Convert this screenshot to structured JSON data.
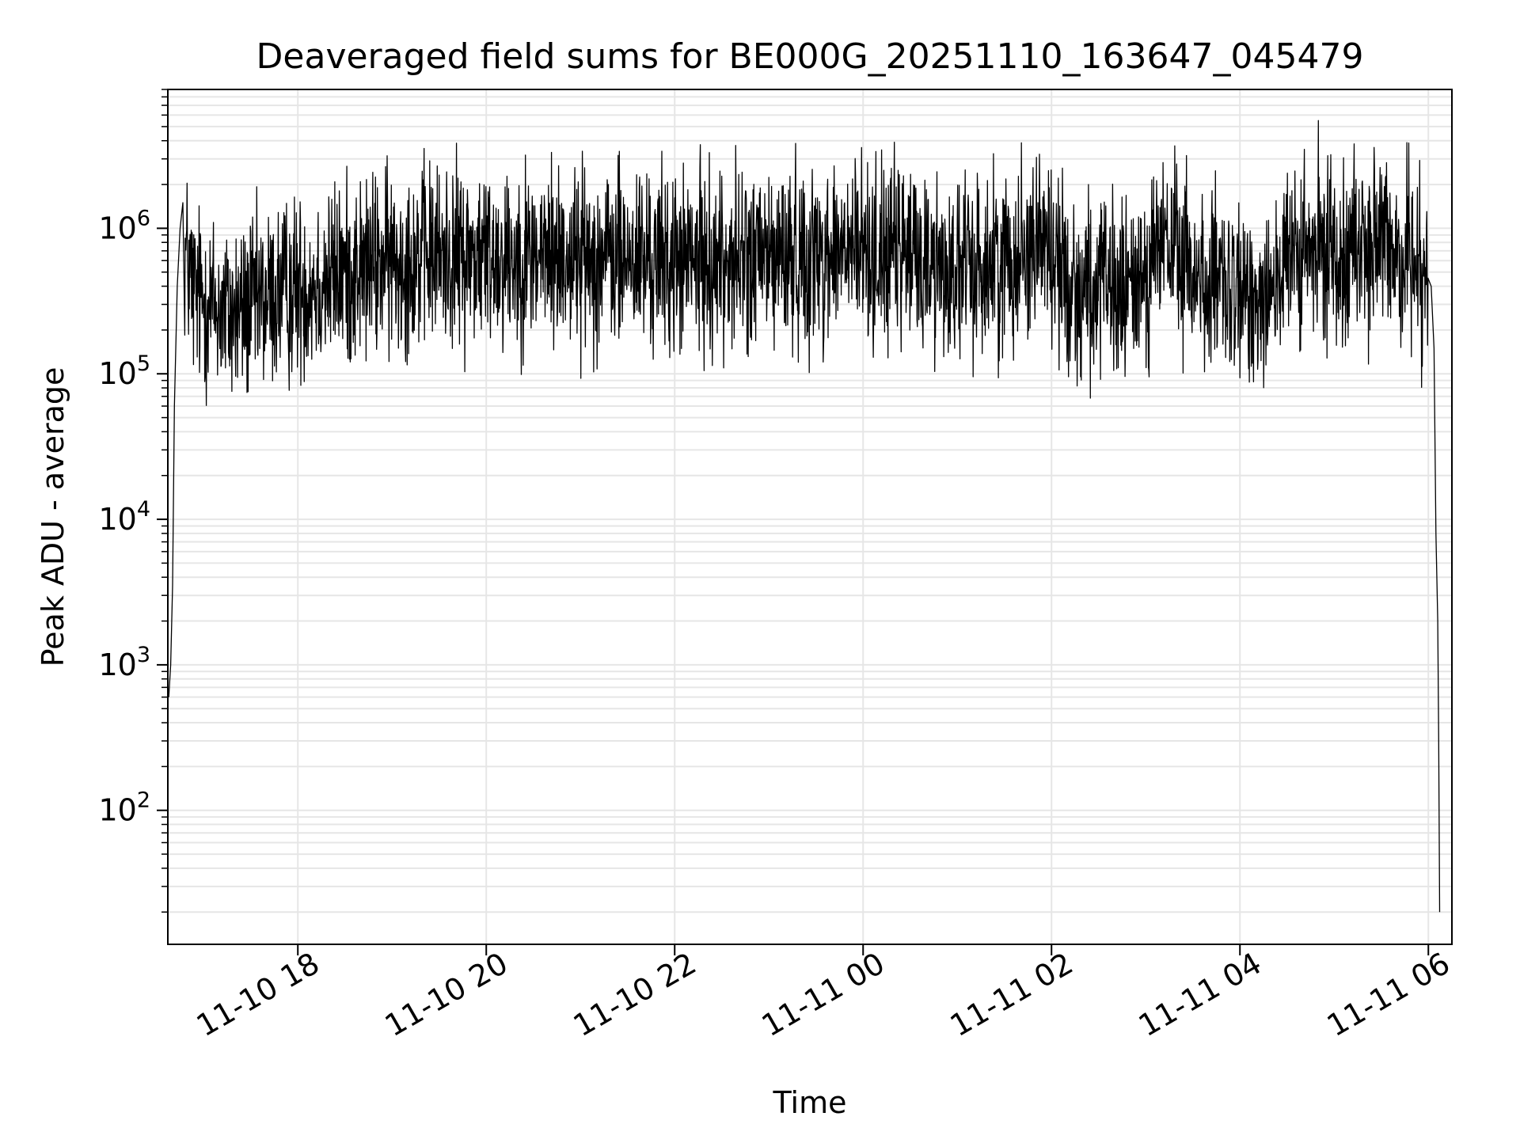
{
  "chart_data": {
    "type": "line",
    "title": "Deaveraged field sums for BE000G_20251110_163647_045479",
    "xlabel": "Time",
    "ylabel": "Peak ADU - average",
    "yscale": "log",
    "ylim": [
      12,
      9000000
    ],
    "xlim_hours": [
      16.62,
      30.25
    ],
    "grid": "major and minor",
    "x_ticks": [
      {
        "hour": 18,
        "label": "11-10 18"
      },
      {
        "hour": 20,
        "label": "11-10 20"
      },
      {
        "hour": 22,
        "label": "11-10 22"
      },
      {
        "hour": 24,
        "label": "11-11 00"
      },
      {
        "hour": 26,
        "label": "11-11 02"
      },
      {
        "hour": 28,
        "label": "11-11 04"
      },
      {
        "hour": 30,
        "label": "11-11 06"
      }
    ],
    "y_ticks": [
      {
        "exp": 2,
        "base": "10",
        "sup": "2"
      },
      {
        "exp": 3,
        "base": "10",
        "sup": "3"
      },
      {
        "exp": 4,
        "base": "10",
        "sup": "4"
      },
      {
        "exp": 5,
        "base": "10",
        "sup": "5"
      },
      {
        "exp": 6,
        "base": "10",
        "sup": "6"
      }
    ],
    "series": [
      {
        "name": "deaveraged field sum",
        "color": "#000000",
        "start_points": [
          [
            16.63,
            600
          ],
          [
            16.65,
            1000
          ],
          [
            16.67,
            3500
          ],
          [
            16.69,
            60000
          ],
          [
            16.72,
            400000
          ],
          [
            16.75,
            1000000
          ],
          [
            16.78,
            1500000
          ]
        ],
        "trend": [
          [
            16.8,
            700000
          ],
          [
            16.9,
            350000
          ],
          [
            17.3,
            250000
          ],
          [
            17.8,
            350000
          ],
          [
            18.3,
            450000
          ],
          [
            18.8,
            550000
          ],
          [
            19.3,
            650000
          ],
          [
            20.0,
            650000
          ],
          [
            21.0,
            650000
          ],
          [
            22.0,
            580000
          ],
          [
            23.0,
            620000
          ],
          [
            24.0,
            700000
          ],
          [
            24.5,
            650000
          ],
          [
            25.0,
            500000
          ],
          [
            25.5,
            600000
          ],
          [
            25.9,
            900000
          ],
          [
            26.2,
            400000
          ],
          [
            26.8,
            350000
          ],
          [
            27.2,
            800000
          ],
          [
            27.5,
            500000
          ],
          [
            28.0,
            300000
          ],
          [
            28.6,
            600000
          ],
          [
            29.2,
            800000
          ],
          [
            30.0,
            600000
          ]
        ],
        "noise_decades": 0.45,
        "sample_step_hours": 0.004,
        "end_points": [
          [
            30.03,
            400000
          ],
          [
            30.06,
            150000
          ],
          [
            30.08,
            8000
          ],
          [
            30.1,
            2000
          ],
          [
            30.11,
            300
          ],
          [
            30.12,
            20
          ]
        ]
      }
    ]
  }
}
